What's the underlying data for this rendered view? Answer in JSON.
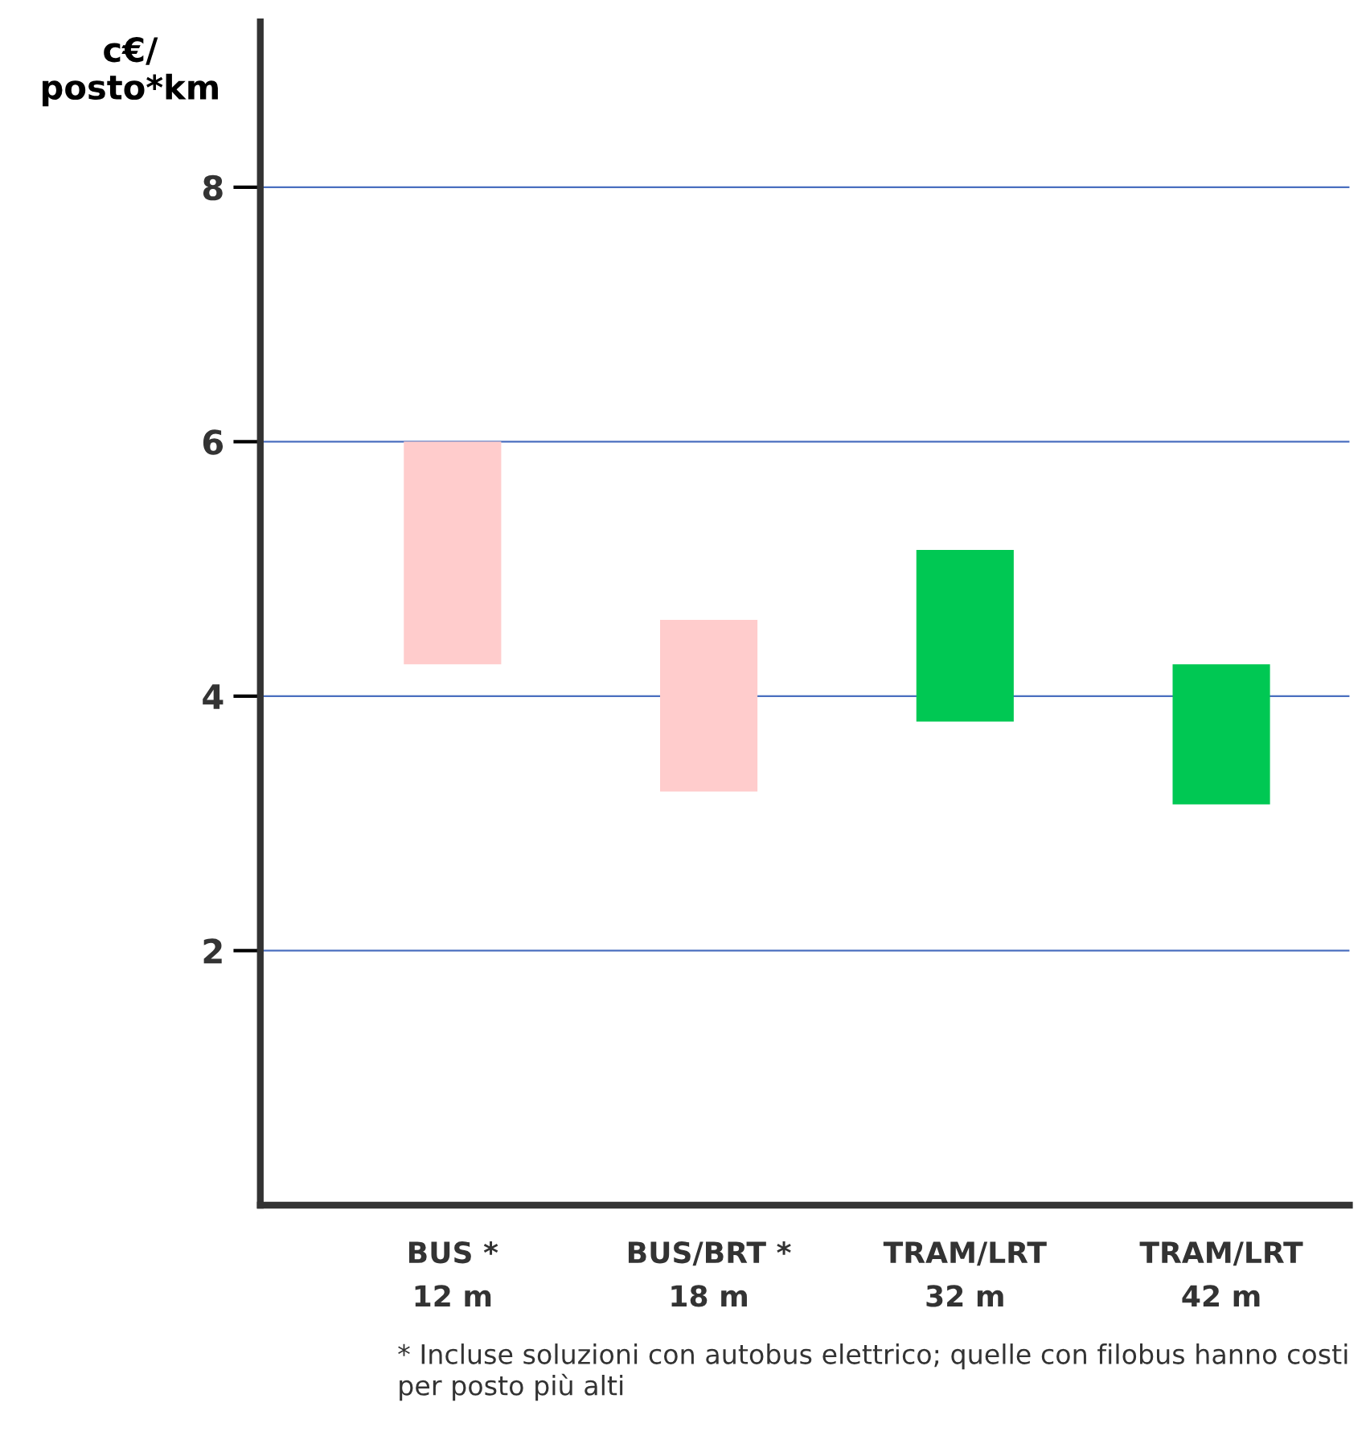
{
  "chart_data": {
    "type": "bar",
    "ylabel": "c€/\nposto*km",
    "categories": [
      "BUS *\n12 m",
      "BUS/BRT *\n18 m",
      "TRAM/LRT\n32 m",
      "TRAM/LRT\n42 m"
    ],
    "base": [
      4.25,
      3.25,
      3.8,
      3.15
    ],
    "values": [
      1.75,
      1.35,
      1.35,
      1.1
    ],
    "colors": [
      "#ffcccc",
      "#ffcccc",
      "#00c853",
      "#00c853"
    ],
    "ylim": [
      0,
      9.3
    ],
    "yticks": [
      2,
      4,
      6,
      8
    ],
    "grid": "y",
    "annotations": [
      "* Incluse soluzioni con autobus elettrico; quelle con filobus hanno costi per posto più alti"
    ]
  }
}
